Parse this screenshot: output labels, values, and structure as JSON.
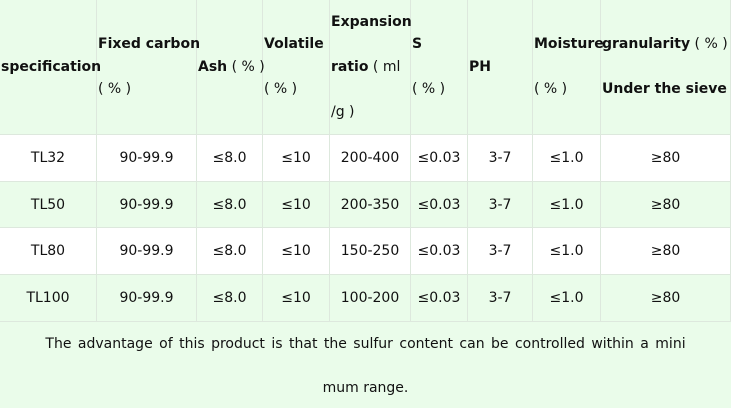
{
  "table": {
    "header": [
      [
        [
          {
            "text": "specification",
            "bold": true
          }
        ]
      ],
      [
        [
          {
            "text": "Fixed carbon",
            "bold": true
          }
        ],
        [
          {
            "text": "( % )",
            "bold": false
          }
        ]
      ],
      [
        [
          {
            "text": "Ash",
            "bold": true
          },
          {
            "text": " ( % )",
            "bold": false
          }
        ]
      ],
      [
        [
          {
            "text": "Volatile",
            "bold": true
          }
        ],
        [
          {
            "text": "( % )",
            "bold": false
          }
        ]
      ],
      [
        [
          {
            "text": "Expansion",
            "bold": true
          }
        ],
        [
          {
            "text": "ratio",
            "bold": true
          },
          {
            "text": " ( ml",
            "bold": false
          }
        ],
        [
          {
            "text": "/g )",
            "bold": false
          }
        ]
      ],
      [
        [
          {
            "text": "S",
            "bold": true
          }
        ],
        [
          {
            "text": "( % )",
            "bold": false
          }
        ]
      ],
      [
        [
          {
            "text": "PH",
            "bold": true
          }
        ]
      ],
      [
        [
          {
            "text": "Moisture",
            "bold": true
          }
        ],
        [
          {
            "text": "( % )",
            "bold": false
          }
        ]
      ],
      [
        [
          {
            "text": "granularity",
            "bold": true
          },
          {
            "text": " ( % )",
            "bold": false
          }
        ],
        [
          {
            "text": "Under the sieve",
            "bold": true
          }
        ]
      ]
    ],
    "rows": [
      [
        "TL32",
        "90-99.9",
        "≤8.0",
        "≤10",
        "200-400",
        "≤0.03",
        "3-7",
        "≤1.0",
        "≥80"
      ],
      [
        "TL50",
        "90-99.9",
        "≤8.0",
        "≤10",
        "200-350",
        "≤0.03",
        "3-7",
        "≤1.0",
        "≥80"
      ],
      [
        "TL80",
        "90-99.9",
        "≤8.0",
        "≤10",
        "150-250",
        "≤0.03",
        "3-7",
        "≤1.0",
        "≥80"
      ],
      [
        "TL100",
        "90-99.9",
        "≤8.0",
        "≤10",
        "100-200",
        "≤0.03",
        "3-7",
        "≤1.0",
        "≥80"
      ]
    ],
    "footer": [
      "The advantage of this product is that the sulfur content can be controlled within a mini",
      "mum range."
    ]
  }
}
